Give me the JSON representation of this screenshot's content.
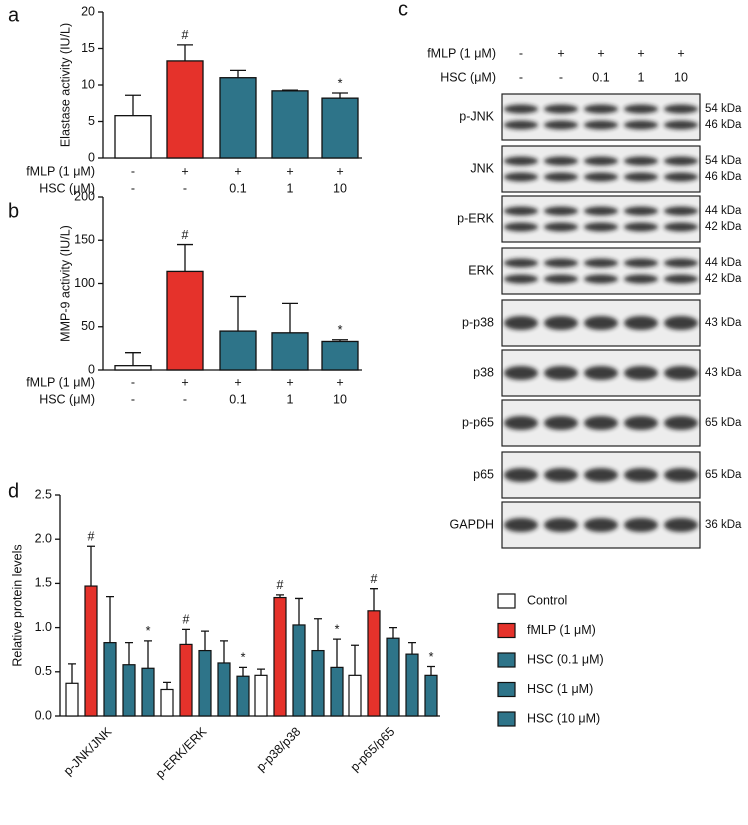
{
  "chart_data": [
    {
      "type": "bar",
      "panel": "a",
      "ylabel": "Elastase activity (IU/L)",
      "conditions": [
        {
          "name": "fMLP (1 μM)",
          "labels": [
            "-",
            "+",
            "+",
            "+",
            "+"
          ]
        },
        {
          "name": "HSC (μM)",
          "labels": [
            "-",
            "-",
            "0.1",
            "1",
            "10"
          ]
        }
      ],
      "values": [
        5.8,
        13.3,
        11.0,
        9.2,
        8.2
      ],
      "errors": [
        2.8,
        2.2,
        1.0,
        0.1,
        0.7
      ],
      "colors": [
        "#ffffff",
        "#e5322b",
        "#2e7489",
        "#2e7489",
        "#2e7489"
      ],
      "annotations": [
        {
          "index": 1,
          "text": "#"
        },
        {
          "index": 4,
          "text": "*"
        }
      ],
      "ylim": [
        0,
        20
      ],
      "yticks": [
        0,
        5,
        10,
        15,
        20
      ]
    },
    {
      "type": "bar",
      "panel": "b",
      "ylabel": "MMP-9 activity (IU/L)",
      "conditions": [
        {
          "name": "fMLP (1 μM)",
          "labels": [
            "-",
            "+",
            "+",
            "+",
            "+"
          ]
        },
        {
          "name": "HSC (μM)",
          "labels": [
            "-",
            "-",
            "0.1",
            "1",
            "10"
          ]
        }
      ],
      "values": [
        5,
        114,
        45,
        43,
        33
      ],
      "errors": [
        15,
        31,
        40,
        34,
        2
      ],
      "colors": [
        "#ffffff",
        "#e5322b",
        "#2e7489",
        "#2e7489",
        "#2e7489"
      ],
      "annotations": [
        {
          "index": 1,
          "text": "#"
        },
        {
          "index": 4,
          "text": "*"
        }
      ],
      "ylim": [
        0,
        200
      ],
      "yticks": [
        0,
        50,
        100,
        150,
        200
      ]
    },
    {
      "type": "blot",
      "panel": "c",
      "conditions": [
        {
          "name": "fMLP (1 μM)",
          "labels": [
            "-",
            "+",
            "+",
            "+",
            "+"
          ]
        },
        {
          "name": "HSC (μM)",
          "labels": [
            "-",
            "-",
            "0.1",
            "1",
            "10"
          ]
        }
      ],
      "blots": [
        {
          "name": "p-JNK",
          "sizes": [
            "54 kDa",
            "46 kDa"
          ]
        },
        {
          "name": "JNK",
          "sizes": [
            "54 kDa",
            "46 kDa"
          ]
        },
        {
          "name": "p-ERK",
          "sizes": [
            "44 kDa",
            "42 kDa"
          ]
        },
        {
          "name": "ERK",
          "sizes": [
            "44 kDa",
            "42 kDa"
          ]
        },
        {
          "name": "p-p38",
          "sizes": [
            "43 kDa"
          ]
        },
        {
          "name": "p38",
          "sizes": [
            "43 kDa"
          ]
        },
        {
          "name": "p-p65",
          "sizes": [
            "65 kDa"
          ]
        },
        {
          "name": "p65",
          "sizes": [
            "65 kDa"
          ]
        },
        {
          "name": "GAPDH",
          "sizes": [
            "36 kDa"
          ]
        }
      ]
    },
    {
      "type": "grouped_bar",
      "panel": "d",
      "ylabel": "Relative protein levels",
      "categories": [
        "p-JNK/JNK",
        "p-ERK/ERK",
        "p-p38/p38",
        "p-p65/p65"
      ],
      "series": [
        {
          "name": "Control",
          "color": "#ffffff",
          "values": [
            0.37,
            0.3,
            0.46,
            0.46
          ],
          "errors": [
            0.22,
            0.08,
            0.07,
            0.34
          ]
        },
        {
          "name": "fMLP (1 μM)",
          "color": "#e5322b",
          "values": [
            1.47,
            0.81,
            1.34,
            1.19
          ],
          "errors": [
            0.45,
            0.17,
            0.03,
            0.25
          ],
          "markers": [
            "#",
            "#",
            "#",
            "#"
          ]
        },
        {
          "name": "HSC (0.1 μM)",
          "color": "#2e7489",
          "values": [
            0.83,
            0.74,
            1.03,
            0.88
          ],
          "errors": [
            0.52,
            0.22,
            0.3,
            0.12
          ]
        },
        {
          "name": "HSC (1 μM)",
          "color": "#2e7489",
          "values": [
            0.58,
            0.6,
            0.74,
            0.7
          ],
          "errors": [
            0.25,
            0.25,
            0.36,
            0.13
          ]
        },
        {
          "name": "HSC (10 μM)",
          "color": "#2e7489",
          "values": [
            0.54,
            0.45,
            0.55,
            0.46
          ],
          "errors": [
            0.31,
            0.1,
            0.32,
            0.1
          ],
          "markers": [
            "*",
            "*",
            "*",
            "*"
          ]
        }
      ],
      "ylim": [
        0,
        2.5
      ],
      "yticks": [
        {
          "value": 0,
          "label": "0.0"
        },
        0.5,
        {
          "value": 1,
          "label": "1.0"
        },
        1.5,
        {
          "value": 2,
          "label": "2.0"
        },
        2.5
      ],
      "legend": "right"
    }
  ]
}
